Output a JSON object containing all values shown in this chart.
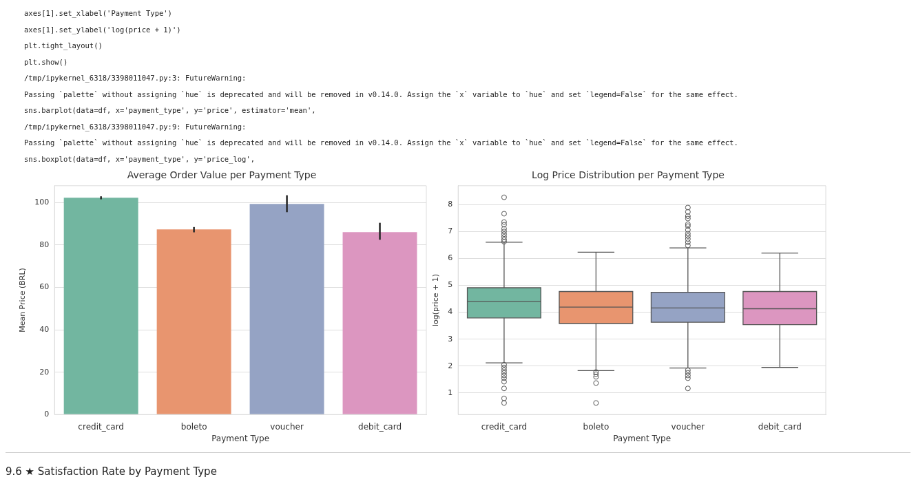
{
  "chart_data": [
    {
      "type": "bar",
      "title": "Average Order Value per Payment Type",
      "xlabel": "Payment Type",
      "ylabel": "Mean Price (BRL)",
      "categories": [
        "credit_card",
        "boleto",
        "voucher",
        "debit_card"
      ],
      "values": [
        102.3,
        87.4,
        99.4,
        86.1
      ],
      "errors": [
        [
          101.6,
          103
        ],
        [
          86,
          88.5
        ],
        [
          95.5,
          103.5
        ],
        [
          82.5,
          90.5
        ]
      ],
      "colors": [
        "#72b6a0",
        "#e8956f",
        "#95a3c4",
        "#dc96c0"
      ],
      "ylim": [
        0,
        108
      ],
      "yticks": [
        0,
        20,
        40,
        60,
        80,
        100
      ],
      "grid": "y",
      "legend": false,
      "annotations": [
        "axes[1].set_xlabel('Payment Type')",
        "axes[1].set_ylabel('log(price + 1)')",
        "plt.tight_layout()",
        "plt.show()",
        "/tmp/ipykernel_6318/3398011047.py:3: FutureWarning:",
        "Passing `palette` without assigning `hue` is deprecated and will be removed in v0.14.0. Assign the `x` variable to `hue` and set `legend=False` for the same effect.",
        "sns.barplot(data=df, x='payment_type', y='price', estimator='mean',",
        "/tmp/ipykernel_6318/3398011047.py:9: FutureWarning:",
        "Passing `palette` without assigning `hue` is deprecated and will be removed in v0.14.0. Assign the `x` variable to `hue` and set `legend=False` for the same effect.",
        "sns.boxplot(data=df, x='payment_type', y='price_log',"
      ]
    },
    {
      "type": "box",
      "title": "Log Price Distribution per Payment Type",
      "xlabel": "Payment Type",
      "ylabel": "log(price + 1)",
      "categories": [
        "credit_card",
        "boleto",
        "voucher",
        "debit_card"
      ],
      "colors": [
        "#72b6a0",
        "#e8956f",
        "#95a3c4",
        "#dc96c0"
      ],
      "ylim": [
        0.2,
        8.7
      ],
      "yticks": [
        1,
        2,
        3,
        4,
        5,
        6,
        7,
        8
      ],
      "grid": "y",
      "legend": false,
      "boxes": [
        {
          "low": 2.12,
          "q1": 3.79,
          "median": 4.4,
          "q3": 4.91,
          "high": 6.6,
          "outliers": [
            8.27,
            7.66,
            7.35,
            7.25,
            7.1,
            7.0,
            6.9,
            6.8,
            6.7,
            6.62,
            2.05,
            1.95,
            1.85,
            1.75,
            1.65,
            1.55,
            1.42,
            1.17,
            0.8,
            0.63
          ]
        },
        {
          "low": 1.83,
          "q1": 3.58,
          "median": 4.19,
          "q3": 4.77,
          "high": 6.23,
          "outliers": [
            1.78,
            1.7,
            1.6,
            1.37,
            0.63
          ]
        },
        {
          "low": 1.93,
          "q1": 3.63,
          "median": 4.16,
          "q3": 4.74,
          "high": 6.39,
          "outliers": [
            7.89,
            7.73,
            7.57,
            7.48,
            7.27,
            7.2,
            7.06,
            6.92,
            6.83,
            6.72,
            6.6,
            6.48,
            1.85,
            1.75,
            1.65,
            1.55,
            1.17
          ]
        },
        {
          "low": 1.95,
          "q1": 3.54,
          "median": 4.13,
          "q3": 4.77,
          "high": 6.2
        }
      ],
      "annotations": [
        "9.6 ★ Satisfaction Rate by Payment Type"
      ]
    }
  ]
}
